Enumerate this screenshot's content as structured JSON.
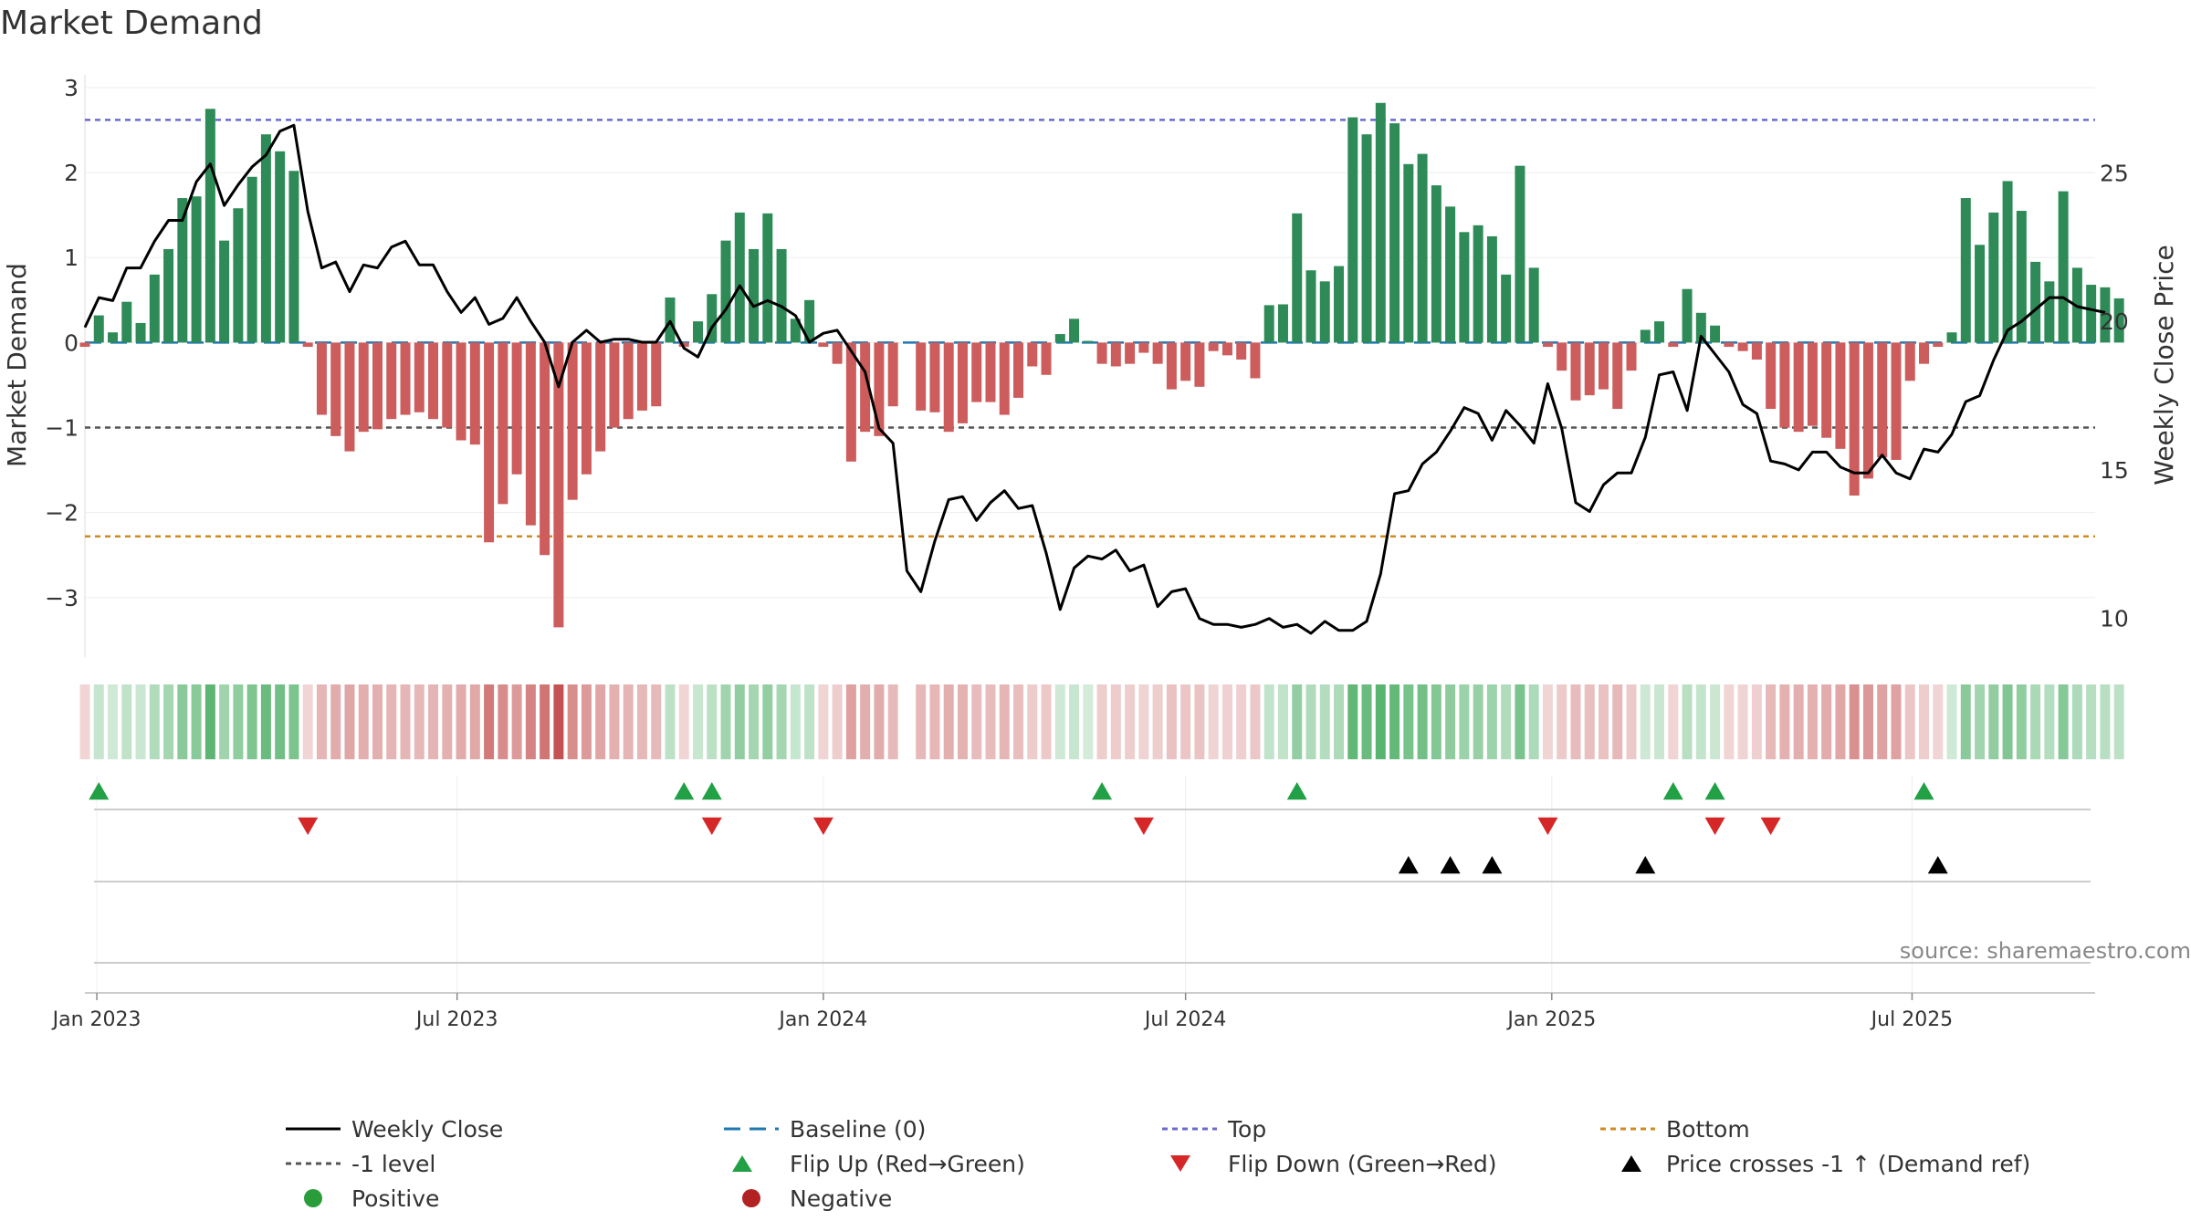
{
  "chart_data": {
    "type": "bar",
    "title": "Market Demand",
    "ylabel": "Market Demand",
    "y2label": "Weekly Close Price",
    "source": "source: sharemaestro.com",
    "ylim": [
      -3.7,
      3.15
    ],
    "y2lim": [
      8.7,
      28.3
    ],
    "yticks": [
      {
        "v": 3,
        "label": "3"
      },
      {
        "v": 2,
        "label": "2"
      },
      {
        "v": 1,
        "label": "1"
      },
      {
        "v": 0,
        "label": "0"
      },
      {
        "v": -1,
        "label": "−1"
      },
      {
        "v": -2,
        "label": "−2"
      },
      {
        "v": -3,
        "label": "−3"
      }
    ],
    "y2ticks": [
      {
        "v": 25,
        "label": "25"
      },
      {
        "v": 20,
        "label": "20"
      },
      {
        "v": 15,
        "label": "15"
      },
      {
        "v": 10,
        "label": "10"
      }
    ],
    "xlim": [
      "2022-12-26",
      "2025-10-01"
    ],
    "xticks": [
      {
        "date": "2023-01-01",
        "label": "Jan 2023"
      },
      {
        "date": "2023-07-01",
        "label": "Jul 2023"
      },
      {
        "date": "2024-01-01",
        "label": "Jan 2024"
      },
      {
        "date": "2024-07-01",
        "label": "Jul 2024"
      },
      {
        "date": "2025-01-01",
        "label": "Jan 2025"
      },
      {
        "date": "2025-07-01",
        "label": "Jul 2025"
      }
    ],
    "start_date": "2022-12-26",
    "reference_lines": {
      "top": 2.62,
      "bottom": -2.28,
      "minus_one": -1,
      "baseline": 0
    },
    "demand": [
      -0.05,
      0.32,
      0.12,
      0.48,
      0.23,
      0.8,
      1.1,
      1.7,
      1.72,
      2.75,
      1.2,
      1.58,
      1.95,
      2.45,
      2.25,
      2.02,
      -0.05,
      -0.85,
      -1.1,
      -1.28,
      -1.05,
      -1.02,
      -0.9,
      -0.85,
      -0.82,
      -0.9,
      -1.0,
      -1.15,
      -1.2,
      -2.35,
      -1.9,
      -1.55,
      -2.15,
      -2.5,
      -3.35,
      -1.85,
      -1.55,
      -1.28,
      -1.0,
      -0.9,
      -0.8,
      -0.75,
      0.53,
      -0.05,
      0.25,
      0.57,
      1.2,
      1.53,
      1.1,
      1.52,
      1.1,
      0.28,
      0.5,
      -0.05,
      -0.25,
      -1.4,
      -1.05,
      -1.1,
      -0.75,
      0.0,
      -0.8,
      -0.82,
      -1.05,
      -0.95,
      -0.7,
      -0.7,
      -0.85,
      -0.65,
      -0.28,
      -0.38,
      0.1,
      0.28,
      0.02,
      -0.25,
      -0.28,
      -0.25,
      -0.12,
      -0.25,
      -0.55,
      -0.45,
      -0.52,
      -0.1,
      -0.15,
      -0.2,
      -0.42,
      0.44,
      0.45,
      1.52,
      0.85,
      0.72,
      0.9,
      2.65,
      2.45,
      2.82,
      2.58,
      2.1,
      2.22,
      1.85,
      1.6,
      1.3,
      1.38,
      1.25,
      0.8,
      2.08,
      0.88,
      -0.05,
      -0.33,
      -0.68,
      -0.62,
      -0.55,
      -0.78,
      -0.33,
      0.15,
      0.25,
      -0.05,
      0.63,
      0.35,
      0.2,
      -0.05,
      -0.1,
      -0.2,
      -0.78,
      -1.0,
      -1.05,
      -0.98,
      -1.12,
      -1.25,
      -1.8,
      -1.6,
      -1.35,
      -1.38,
      -0.45,
      -0.25,
      -0.05,
      0.12,
      1.7,
      1.15,
      1.53,
      1.9,
      1.55,
      0.95,
      0.72,
      1.78,
      0.88,
      0.68,
      0.65,
      0.52
    ],
    "close": [
      19.8,
      20.8,
      20.7,
      21.8,
      21.8,
      22.7,
      23.4,
      23.4,
      24.7,
      25.3,
      23.9,
      24.6,
      25.2,
      25.6,
      26.4,
      26.6,
      23.7,
      21.8,
      22.0,
      21.0,
      21.9,
      21.8,
      22.5,
      22.7,
      21.9,
      21.9,
      21.0,
      20.3,
      20.8,
      19.9,
      20.1,
      20.8,
      20.0,
      19.3,
      17.8,
      19.3,
      19.7,
      19.3,
      19.4,
      19.4,
      19.3,
      19.3,
      20.0,
      19.1,
      18.8,
      19.8,
      20.4,
      21.2,
      20.5,
      20.7,
      20.5,
      20.2,
      19.3,
      19.6,
      19.7,
      19.0,
      18.3,
      16.4,
      15.9,
      11.6,
      10.9,
      12.6,
      14.0,
      14.1,
      13.3,
      13.9,
      14.3,
      13.7,
      13.8,
      12.2,
      10.3,
      11.7,
      12.1,
      12.0,
      12.3,
      11.6,
      11.8,
      10.4,
      10.9,
      11.0,
      10.0,
      9.8,
      9.8,
      9.7,
      9.8,
      10.0,
      9.7,
      9.8,
      9.5,
      9.9,
      9.6,
      9.6,
      9.9,
      11.5,
      14.2,
      14.3,
      15.2,
      15.6,
      16.3,
      17.1,
      16.9,
      16.0,
      17.0,
      16.5,
      15.9,
      17.9,
      16.4,
      13.9,
      13.6,
      14.5,
      14.9,
      14.9,
      16.1,
      18.2,
      18.3,
      17.0,
      19.5,
      18.9,
      18.3,
      17.2,
      16.9,
      15.3,
      15.2,
      15.0,
      15.6,
      15.6,
      15.1,
      14.9,
      14.9,
      15.5,
      14.9,
      14.7,
      15.7,
      15.6,
      16.2,
      17.3,
      17.5,
      18.7,
      19.7,
      20.0,
      20.4,
      20.8,
      20.8,
      20.5,
      20.4,
      20.3
    ]
  },
  "flip_up_dates": [
    "2023-01-02",
    "2023-10-23",
    "2023-11-06",
    "2024-05-20",
    "2024-08-26",
    "2025-03-03",
    "2025-03-24",
    "2025-07-07"
  ],
  "flip_down_dates": [
    "2023-04-17",
    "2023-11-06",
    "2024-01-01",
    "2024-06-10",
    "2024-12-30",
    "2025-03-24",
    "2025-04-21"
  ],
  "price_cross_dates": [
    "2024-10-21",
    "2024-11-11",
    "2024-12-02",
    "2025-02-17",
    "2025-07-14"
  ],
  "legend": {
    "weekly_close": "Weekly Close",
    "baseline": "Baseline (0)",
    "top": "Top",
    "bottom": "Bottom",
    "minus_one": "-1 level",
    "flip_up": "Flip Up (Red→Green)",
    "flip_down": "Flip Down (Green→Red)",
    "price_cross": "Price crosses -1 ↑ (Demand ref)",
    "positive": "Positive",
    "negative": "Negative"
  },
  "colors": {
    "positive": "#2e8b57",
    "negative": "#cd5c5c",
    "close_line": "#000000",
    "top_line": "#6a6ad0",
    "bottom_line": "#d08a1e",
    "minus_one_line": "#555555",
    "baseline_line": "#1f77b4",
    "flip_up": "#22a045",
    "flip_down": "#d62728",
    "cross_marker": "#000000",
    "positive_dot": "#2a9d3a",
    "negative_dot": "#b22222"
  }
}
